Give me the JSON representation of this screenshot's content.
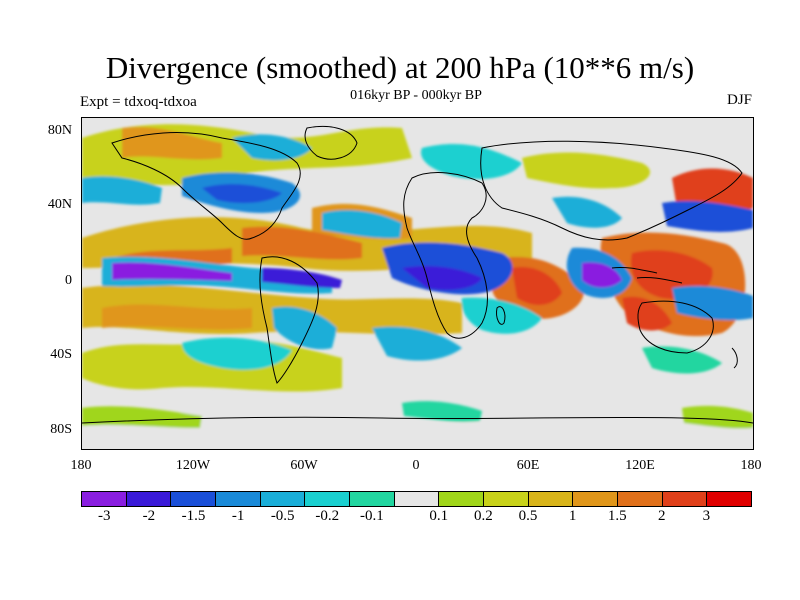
{
  "title": "Divergence (smoothed) at 200 hPa (10**6 m/s)",
  "subtitle": "016kyr BP - 000kyr BP",
  "expt_label": "Expt = tdxoq-tdxoa",
  "season": "DJF",
  "map": {
    "projection": "cylindrical equidistant",
    "lon_range": [
      -180,
      180
    ],
    "lat_range": [
      -90,
      90
    ],
    "lat_ticks": [
      {
        "value": 80,
        "label": "80N"
      },
      {
        "value": 40,
        "label": "40N"
      },
      {
        "value": 0,
        "label": "0"
      },
      {
        "value": -40,
        "label": "40S"
      },
      {
        "value": -80,
        "label": "80S"
      }
    ],
    "lon_ticks": [
      {
        "value": -180,
        "label": "180"
      },
      {
        "value": -120,
        "label": "120W"
      },
      {
        "value": -60,
        "label": "60W"
      },
      {
        "value": 0,
        "label": "0"
      },
      {
        "value": 60,
        "label": "60E"
      },
      {
        "value": 120,
        "label": "120E"
      },
      {
        "value": 180,
        "label": "180"
      }
    ],
    "fill_colors": {
      "neutral": "#e6e6e6"
    }
  },
  "colorbar": {
    "colors": [
      "#8a1ee0",
      "#3a1ad8",
      "#1a4fd8",
      "#1a8ad8",
      "#1aaed8",
      "#1ad0d0",
      "#22d6a0",
      "#e6e6e6",
      "#a0d61a",
      "#c8d21a",
      "#d8b41a",
      "#e0961a",
      "#e0701a",
      "#e0401a",
      "#e00000"
    ],
    "labels": [
      "-3",
      "-2",
      "-1.5",
      "-1",
      "-0.5",
      "-0.2",
      "-0.1",
      "0.1",
      "0.2",
      "0.5",
      "1",
      "1.5",
      "2",
      "3"
    ]
  }
}
